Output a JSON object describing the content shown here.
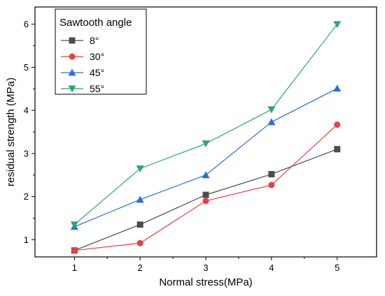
{
  "chart_data": {
    "type": "line",
    "xlabel": "Normal stress(MPa)",
    "ylabel": "residual strength (MPa)",
    "x": [
      1,
      2,
      3,
      4,
      5
    ],
    "xlim": [
      0.4,
      5.6
    ],
    "ylim": [
      0.6,
      6.4
    ],
    "xticks": [
      1,
      2,
      3,
      4,
      5
    ],
    "yticks": [
      1,
      2,
      3,
      4,
      5,
      6
    ],
    "legend_title": "Sawtooth angle",
    "legend_position": "top-left",
    "grid": false,
    "series": [
      {
        "name": "8°",
        "values": [
          0.75,
          1.35,
          2.04,
          2.52,
          3.1
        ],
        "color": "#4d4d4d",
        "marker": "square"
      },
      {
        "name": "30°",
        "values": [
          0.75,
          0.92,
          1.9,
          2.27,
          3.67
        ],
        "color": "#e84040",
        "marker": "circle"
      },
      {
        "name": "45°",
        "values": [
          1.3,
          1.93,
          2.5,
          3.73,
          4.51
        ],
        "color": "#2b6fd6",
        "marker": "triangle-up"
      },
      {
        "name": "55°",
        "values": [
          1.35,
          2.65,
          3.23,
          4.02,
          6.0
        ],
        "color": "#2aa86b",
        "marker": "triangle-down"
      }
    ]
  }
}
